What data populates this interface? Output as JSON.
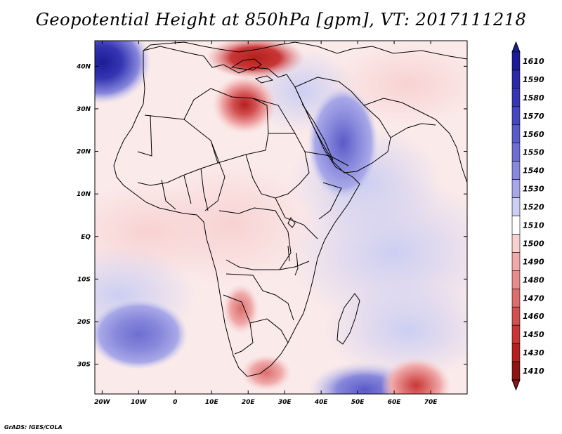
{
  "title": "Geopotential Height at 850hPa [gpm], VT: 2017111218",
  "credit": "GrADS: IGES/COLA",
  "map": {
    "lon_range": [
      -22,
      80
    ],
    "lat_range": [
      -37,
      46
    ],
    "x_ticks": [
      "20W",
      "10W",
      "0",
      "10E",
      "20E",
      "30E",
      "40E",
      "50E",
      "60E",
      "70E"
    ],
    "x_tick_values": [
      -20,
      -10,
      0,
      10,
      20,
      30,
      40,
      50,
      60,
      70
    ],
    "y_ticks": [
      "40N",
      "30N",
      "20N",
      "10N",
      "EQ",
      "10S",
      "20S",
      "30S"
    ],
    "y_tick_values": [
      40,
      30,
      20,
      10,
      0,
      -10,
      -20,
      -30
    ]
  },
  "colorbar": {
    "levels": [
      "1610",
      "1590",
      "1580",
      "1570",
      "1560",
      "1550",
      "1540",
      "1530",
      "1520",
      "1510",
      "1500",
      "1490",
      "1480",
      "1470",
      "1460",
      "1450",
      "1430",
      "1410"
    ],
    "colors": [
      "#1c1c96",
      "#2a2aa8",
      "#3636b4",
      "#4646be",
      "#5a5ac8",
      "#6e6ed2",
      "#8888dc",
      "#a8a8e8",
      "#cccef2",
      "#ffffff",
      "#f8d2d2",
      "#f0aaaa",
      "#e68c8c",
      "#dc6e6e",
      "#d25050",
      "#c83636",
      "#b42020",
      "#8c1414"
    ]
  },
  "field_features": [
    {
      "name": "low-mediterranean-libya",
      "lon": 19,
      "lat": 31,
      "value": 1440
    },
    {
      "name": "low-north-mediterranean",
      "lon": 22,
      "lat": 42,
      "value": 1460
    },
    {
      "name": "high-northwest-atlantic",
      "lon": -20,
      "lat": 41,
      "value": 1590
    },
    {
      "name": "high-arabia",
      "lon": 46,
      "lat": 22,
      "value": 1560
    },
    {
      "name": "high-south-atlantic",
      "lon": -10,
      "lat": -23,
      "value": 1560
    },
    {
      "name": "high-southeast-indian",
      "lon": 52,
      "lat": -36,
      "value": 1560
    },
    {
      "name": "low-southern-ocean",
      "lon": 66,
      "lat": -35,
      "value": 1440
    },
    {
      "name": "low-south-africa",
      "lon": 25,
      "lat": -32,
      "value": 1470
    },
    {
      "name": "low-kalahari",
      "lon": 18,
      "lat": -17,
      "value": 1480
    }
  ]
}
